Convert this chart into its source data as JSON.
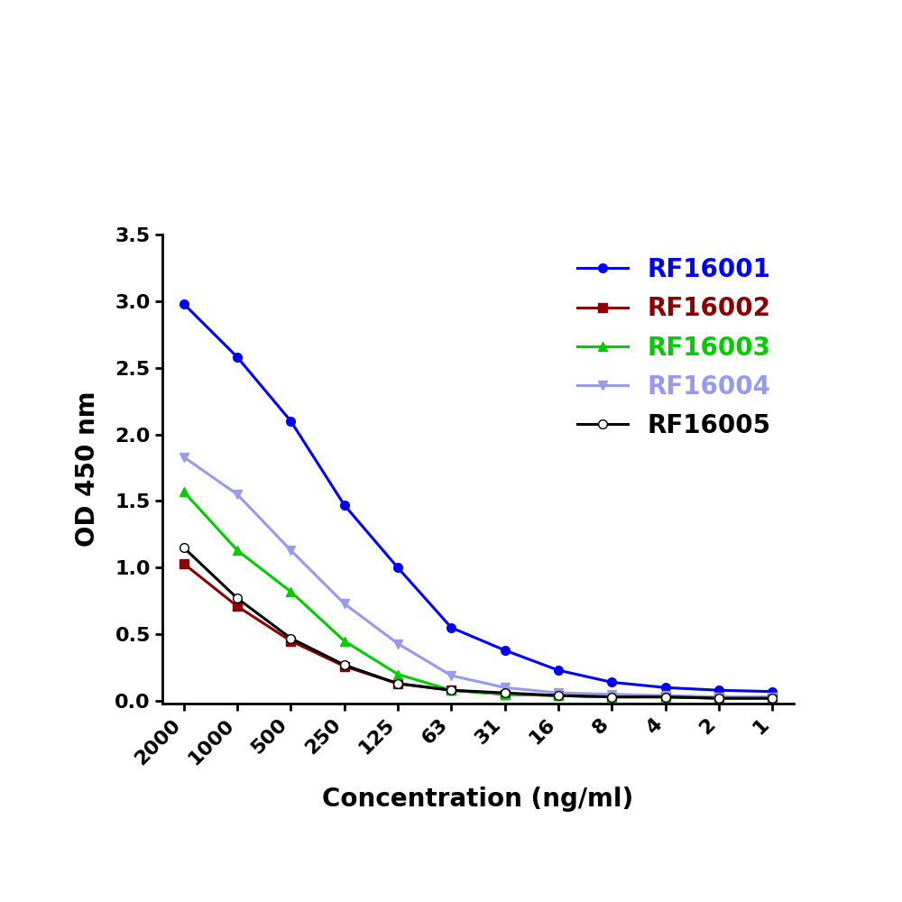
{
  "x_labels": [
    "2000",
    "1000",
    "500",
    "250",
    "125",
    "63",
    "31",
    "16",
    "8",
    "4",
    "2",
    "1"
  ],
  "x_positions": [
    0,
    1,
    2,
    3,
    4,
    5,
    6,
    7,
    8,
    9,
    10,
    11
  ],
  "series": [
    {
      "label": "RF16001",
      "color": "#0000FF",
      "marker": "o",
      "markerfacecolor": "#0000FF",
      "markersize": 7,
      "linewidth": 2.2,
      "values": [
        2.98,
        2.58,
        2.1,
        1.47,
        1.0,
        0.55,
        0.38,
        0.23,
        0.14,
        0.1,
        0.08,
        0.07
      ]
    },
    {
      "label": "RF16002",
      "color": "#8B0000",
      "marker": "s",
      "markerfacecolor": "#8B0000",
      "markersize": 7,
      "linewidth": 2.2,
      "values": [
        1.03,
        0.71,
        0.45,
        0.26,
        0.13,
        0.08,
        0.05,
        0.04,
        0.03,
        0.03,
        0.02,
        0.02
      ]
    },
    {
      "label": "RF16003",
      "color": "#00CC00",
      "marker": "^",
      "markerfacecolor": "#00CC00",
      "markersize": 7,
      "linewidth": 2.2,
      "values": [
        1.57,
        1.13,
        0.82,
        0.45,
        0.2,
        0.08,
        0.05,
        0.04,
        0.03,
        0.03,
        0.02,
        0.02
      ]
    },
    {
      "label": "RF16004",
      "color": "#9999EE",
      "marker": "v",
      "markerfacecolor": "#9999EE",
      "markersize": 7,
      "linewidth": 2.2,
      "values": [
        1.83,
        1.55,
        1.13,
        0.73,
        0.43,
        0.19,
        0.1,
        0.06,
        0.05,
        0.04,
        0.03,
        0.03
      ]
    },
    {
      "label": "RF16005",
      "color": "#000000",
      "marker": "o",
      "markerfacecolor": "white",
      "markersize": 7,
      "linewidth": 2.2,
      "values": [
        1.15,
        0.77,
        0.47,
        0.27,
        0.13,
        0.08,
        0.06,
        0.04,
        0.03,
        0.03,
        0.02,
        0.02
      ]
    }
  ],
  "ylabel": "OD 450 nm",
  "xlabel": "Concentration (ng/ml)",
  "ylim": [
    -0.02,
    3.5
  ],
  "yticks": [
    0.0,
    0.5,
    1.0,
    1.5,
    2.0,
    2.5,
    3.0,
    3.5
  ],
  "ytick_labels": [
    "0.0",
    "0.5",
    "1.0",
    "1.5",
    "2.0",
    "2.5",
    "3.0",
    "3.5"
  ],
  "background_color": "#ffffff",
  "ylabel_fontsize": 20,
  "xlabel_fontsize": 20,
  "tick_fontsize": 16,
  "legend_fontsize": 20
}
